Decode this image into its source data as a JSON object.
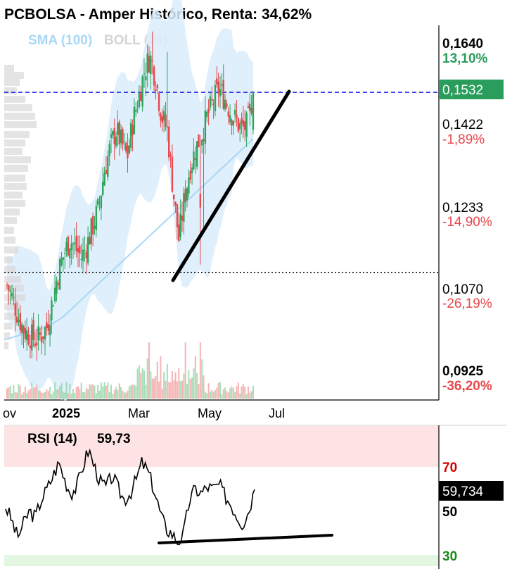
{
  "title": "PCBOLSA - Amper Histórico, Renta: 34,62%",
  "indicators": {
    "sma_label": "SMA (100)",
    "boll_label": "BOLL (20)",
    "sma_color": "#a8d8f5",
    "boll_color": "#d4d4d4"
  },
  "colors": {
    "up": "#2ca55a",
    "down": "#e8474b",
    "percent_up": "#2a9d5c",
    "percent_down": "#e8474b",
    "current_price_bg": "#2a9d5c",
    "dashed_line": "#1e1ee6",
    "trendline": "#000000",
    "rsi_overbought": "#d40000",
    "rsi_oversold": "#1a8a1a"
  },
  "price_axis": [
    {
      "price": "0,1640",
      "percent": "13,10%",
      "direction": "up"
    },
    {
      "price": "0,1422",
      "percent": "-1,89%",
      "direction": "down"
    },
    {
      "price": "0,1233",
      "percent": "-14,90%",
      "direction": "down"
    },
    {
      "price": "0,1070",
      "percent": "-26,19%",
      "direction": "down"
    },
    {
      "price": "0,0925",
      "percent": "-36,20%",
      "direction": "down"
    }
  ],
  "current_price": "0,1532",
  "time_axis": [
    "ov",
    "2025",
    "Mar",
    "May",
    "Jul"
  ],
  "rsi": {
    "label": "RSI (14)",
    "value": "59,73",
    "current_value": "59,734",
    "levels": [
      "70",
      "50",
      "30"
    ]
  },
  "chart_data": {
    "type": "candlestick",
    "title": "PCBOLSA - Amper Histórico, Renta: 34,62%",
    "x_ticks": [
      "ov",
      "2025",
      "Mar",
      "May",
      "Jul"
    ],
    "y_ticks": [
      0.164,
      0.1422,
      0.1233,
      0.107,
      0.0925
    ],
    "ylim": [
      0.0925,
      0.17
    ],
    "close_series_approx": [
      0.111,
      0.108,
      0.104,
      0.101,
      0.1,
      0.099,
      0.1,
      0.102,
      0.108,
      0.114,
      0.118,
      0.121,
      0.119,
      0.117,
      0.12,
      0.124,
      0.128,
      0.136,
      0.141,
      0.145,
      0.142,
      0.139,
      0.147,
      0.152,
      0.158,
      0.161,
      0.156,
      0.148,
      0.145,
      0.132,
      0.121,
      0.13,
      0.137,
      0.141,
      0.144,
      0.148,
      0.151,
      0.154,
      0.152,
      0.149,
      0.147,
      0.145,
      0.146,
      0.153
    ],
    "sma_100_approx": [
      0.099,
      0.1,
      0.101,
      0.102,
      0.104,
      0.107,
      0.11,
      0.113,
      0.116,
      0.119,
      0.122,
      0.125,
      0.128,
      0.131,
      0.134,
      0.137,
      0.14,
      0.143
    ],
    "current_price": 0.1532,
    "dashed_reference": 0.1532,
    "dotted_reference": 0.1138,
    "rsi": {
      "name": "RSI (14)",
      "current": 59.734,
      "levels": [
        70,
        50,
        30
      ],
      "values_approx": [
        52,
        46,
        38,
        44,
        50,
        47,
        55,
        60,
        66,
        72,
        64,
        58,
        61,
        70,
        78,
        70,
        63,
        61,
        66,
        60,
        55,
        58,
        64,
        72,
        68,
        60,
        50,
        42,
        40,
        36,
        39,
        55,
        60,
        58,
        61,
        60,
        62,
        57,
        53,
        48,
        44,
        50,
        60
      ]
    }
  }
}
